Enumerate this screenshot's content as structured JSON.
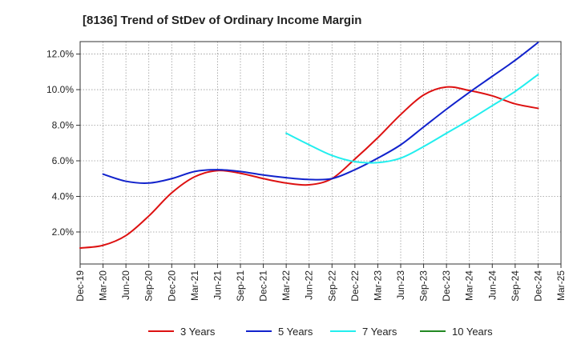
{
  "chart_data": {
    "type": "line",
    "title": "[8136]  Trend of StDev of Ordinary Income Margin",
    "xlabel": "",
    "ylabel": "",
    "x_ticks": [
      "Dec-19",
      "Mar-20",
      "Jun-20",
      "Sep-20",
      "Dec-20",
      "Mar-21",
      "Jun-21",
      "Sep-21",
      "Dec-21",
      "Mar-22",
      "Jun-22",
      "Sep-22",
      "Dec-22",
      "Mar-23",
      "Jun-23",
      "Sep-23",
      "Dec-23",
      "Mar-24",
      "Jun-24",
      "Sep-24",
      "Dec-24",
      "Mar-25"
    ],
    "y_ticks": [
      2.0,
      4.0,
      6.0,
      8.0,
      10.0,
      12.0
    ],
    "y_tick_labels": [
      "2.0%",
      "4.0%",
      "6.0%",
      "8.0%",
      "10.0%",
      "12.0%"
    ],
    "ylim": [
      0.2,
      12.7
    ],
    "grid": true,
    "legend_position": "bottom",
    "series": [
      {
        "name": "3 Years",
        "color": "#dd1111",
        "points": [
          [
            "Dec-19",
            1.1
          ],
          [
            "Mar-20",
            1.25
          ],
          [
            "Jun-20",
            1.8
          ],
          [
            "Sep-20",
            2.9
          ],
          [
            "Dec-20",
            4.2
          ],
          [
            "Mar-21",
            5.1
          ],
          [
            "Jun-21",
            5.45
          ],
          [
            "Sep-21",
            5.3
          ],
          [
            "Dec-21",
            5.0
          ],
          [
            "Mar-22",
            4.75
          ],
          [
            "Jun-22",
            4.65
          ],
          [
            "Sep-22",
            5.0
          ],
          [
            "Dec-22",
            6.1
          ],
          [
            "Mar-23",
            7.3
          ],
          [
            "Jun-23",
            8.6
          ],
          [
            "Sep-23",
            9.7
          ],
          [
            "Dec-23",
            10.15
          ],
          [
            "Mar-24",
            9.95
          ],
          [
            "Jun-24",
            9.65
          ],
          [
            "Sep-24",
            9.2
          ],
          [
            "Dec-24",
            8.95
          ]
        ]
      },
      {
        "name": "5 Years",
        "color": "#1122cc",
        "points": [
          [
            "Mar-20",
            5.25
          ],
          [
            "Jun-20",
            4.85
          ],
          [
            "Sep-20",
            4.75
          ],
          [
            "Dec-20",
            5.0
          ],
          [
            "Mar-21",
            5.4
          ],
          [
            "Jun-21",
            5.5
          ],
          [
            "Sep-21",
            5.4
          ],
          [
            "Dec-21",
            5.2
          ],
          [
            "Mar-22",
            5.05
          ],
          [
            "Jun-22",
            4.95
          ],
          [
            "Sep-22",
            5.0
          ],
          [
            "Dec-22",
            5.5
          ],
          [
            "Mar-23",
            6.15
          ],
          [
            "Jun-23",
            6.9
          ],
          [
            "Sep-23",
            7.9
          ],
          [
            "Dec-23",
            8.9
          ],
          [
            "Mar-24",
            9.85
          ],
          [
            "Jun-24",
            10.75
          ],
          [
            "Sep-24",
            11.65
          ],
          [
            "Dec-24",
            12.65
          ]
        ]
      },
      {
        "name": "7 Years",
        "color": "#22eeee",
        "points": [
          [
            "Mar-22",
            7.55
          ],
          [
            "Jun-22",
            6.9
          ],
          [
            "Sep-22",
            6.3
          ],
          [
            "Dec-22",
            5.95
          ],
          [
            "Mar-23",
            5.9
          ],
          [
            "Jun-23",
            6.15
          ],
          [
            "Sep-23",
            6.8
          ],
          [
            "Dec-23",
            7.55
          ],
          [
            "Mar-24",
            8.3
          ],
          [
            "Jun-24",
            9.1
          ],
          [
            "Sep-24",
            9.9
          ],
          [
            "Dec-24",
            10.85
          ]
        ]
      },
      {
        "name": "10 Years",
        "color": "#228822",
        "points": []
      }
    ]
  }
}
